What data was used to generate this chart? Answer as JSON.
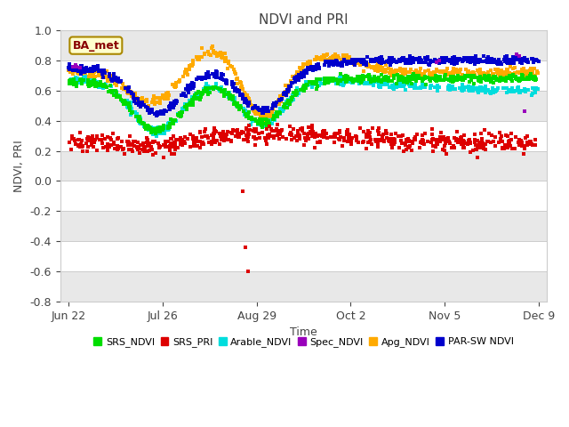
{
  "title": "NDVI and PRI",
  "xlabel": "Time",
  "ylabel": "NDVI, PRI",
  "ylim": [
    -0.8,
    1.0
  ],
  "annotation": "BA_met",
  "colors": {
    "SRS_NDVI": "#00dd00",
    "SRS_PRI": "#dd0000",
    "Arable_NDVI": "#00dddd",
    "Spec_NDVI": "#9900bb",
    "Apg_NDVI": "#ffaa00",
    "PAR_SW_NDVI": "#0000cc"
  },
  "yticks": [
    -0.8,
    -0.6,
    -0.4,
    -0.2,
    0.0,
    0.2,
    0.4,
    0.6,
    0.8,
    1.0
  ],
  "xtick_labels": [
    "Jun 22",
    "Jul 26",
    "Aug 29",
    "Oct 2",
    "Nov 5",
    "Dec 9"
  ],
  "xtick_positions": [
    0,
    34,
    68,
    102,
    136,
    170
  ],
  "plot_bg": "#ffffff",
  "legend_entries": [
    "SRS_NDVI",
    "SRS_PRI",
    "Arable_NDVI",
    "Spec_NDVI",
    "Apg_NDVI",
    "PAR-SW NDVI"
  ]
}
